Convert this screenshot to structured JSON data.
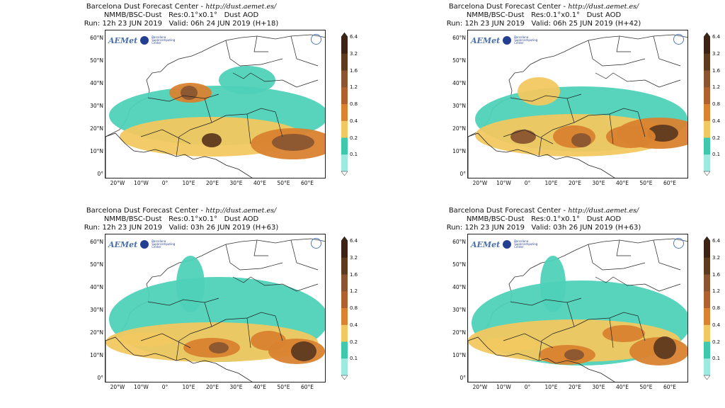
{
  "header": {
    "line1_prefix": "Barcelona Dust Forecast Center - ",
    "url": "http://dust.aemet.es/",
    "line2": "NMMB/BSC-Dust   Res:0.1°x0.1°   Dust AOD"
  },
  "panels": [
    {
      "run_valid": "Run: 12h 23 JUN 2019   Valid: 06h 24 JUN 2019 (H+18)"
    },
    {
      "run_valid": "Run: 12h 23 JUN 2019   Valid: 06h 25 JUN 2019 (H+42)"
    },
    {
      "run_valid": "Run: 12h 23 JUN 2019   Valid: 03h 26 JUN 2019 (H+63)"
    },
    {
      "run_valid": "Run: 12h 23 JUN 2019   Valid: 03h 26 JUN 2019 (H+63)"
    }
  ],
  "logos": {
    "aemet": "AEMet",
    "bsc_text": "Barcelona Supercomputing Center"
  },
  "lat_labels": [
    "60°N",
    "50°N",
    "40°N",
    "30°N",
    "20°N",
    "10°N",
    "0°"
  ],
  "lon_labels": [
    "20°W",
    "10°W",
    "0°",
    "10°E",
    "20°E",
    "30°E",
    "40°E",
    "50°E",
    "60°E"
  ],
  "colorbar": {
    "ticks": [
      "6.4",
      "3.2",
      "1.6",
      "1.2",
      "0.8",
      "0.4",
      "0.2",
      "0.1"
    ],
    "colors": [
      "#3d2313",
      "#5e3a1f",
      "#8a5530",
      "#b0622e",
      "#d9822f",
      "#f2c860",
      "#3ec9ae",
      "#9feadf"
    ]
  },
  "colors": {
    "border": "#222222",
    "sea_dust": "#4fd1b8"
  }
}
